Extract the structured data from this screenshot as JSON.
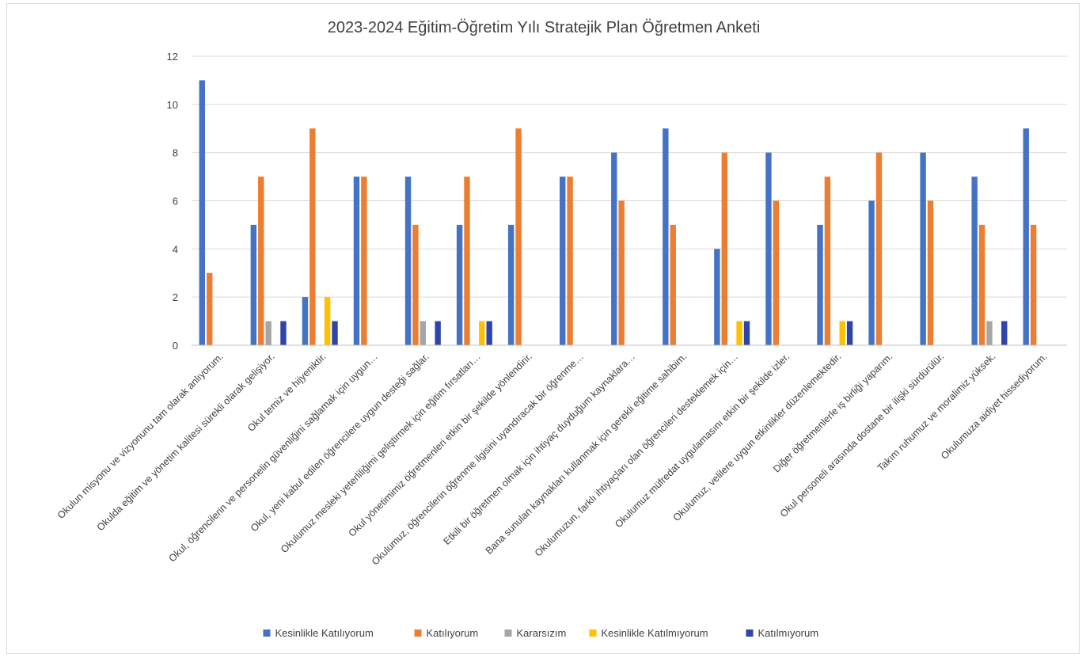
{
  "chart_data": {
    "type": "bar",
    "title": "2023-2024 Eğitim-Öğretim Yılı Stratejik Plan Öğretmen Anketi",
    "xlabel": "",
    "ylabel": "",
    "ylim": [
      0,
      12
    ],
    "yticks": [
      0,
      2,
      4,
      6,
      8,
      10,
      12
    ],
    "grid": true,
    "legend_position": "bottom",
    "categories": [
      "Okulun misyonu ve vizyonunu tam olarak anlıyorum.",
      "Okulda eğitim ve yönetim kalitesi sürekli olarak gelişiyor.",
      "Okul temiz ve hijyeniktir.",
      "Okul, öğrencilerin ve personelin güvenliğini sağlamak için uygun…",
      "Okul, yeni kabul edilen öğrencilere uygun desteği sağlar.",
      "Okulumuz mesleki yeterliliğimi geliştirmek için eğitim fırsatları…",
      "Okul yönetimimiz öğretmenleri etkin bir şekilde yönlendirir.",
      "Okulumuz, öğrencilerin öğrenme ilgisini uyandıracak bir öğrenme…",
      "Etkili bir öğretmen olmak için ihtiyaç duyduğum kaynaklara…",
      "Bana sunulan kaynakları kullanmak için gerekli eğitime sahibim.",
      "Okulumuzun, farklı ihtiyaçları olan öğrencileri desteklemek için…",
      "Okulumuz müfredat uygulamasını etkin bir şekilde izler.",
      "Okulumuz, velilere uygun etkinlikler düzenlemektedir.",
      "Diğer öğretmenlerle iş birliği yaparım.",
      "Okul personeli arasında dostane bir ilişki sürdürülür.",
      "Takım ruhumuz ve moralimiz yüksek.",
      "Okulumuza aidiyet hissediyorum."
    ],
    "series": [
      {
        "name": "Kesinlikle Katılıyorum",
        "color": "#4472c4",
        "values": [
          11,
          5,
          2,
          7,
          7,
          5,
          5,
          7,
          8,
          9,
          4,
          8,
          5,
          6,
          8,
          7,
          9
        ]
      },
      {
        "name": "Katılıyorum",
        "color": "#ed7d31",
        "values": [
          3,
          7,
          9,
          7,
          5,
          7,
          9,
          7,
          6,
          5,
          8,
          6,
          7,
          8,
          6,
          5,
          5
        ]
      },
      {
        "name": "Kararsızım",
        "color": "#a5a5a5",
        "values": [
          0,
          1,
          0,
          0,
          1,
          0,
          0,
          0,
          0,
          0,
          0,
          0,
          0,
          0,
          0,
          1,
          0
        ]
      },
      {
        "name": "Kesinlikle Katılmıyorum",
        "color": "#ffc000",
        "values": [
          0,
          0,
          2,
          0,
          0,
          1,
          0,
          0,
          0,
          0,
          1,
          0,
          1,
          0,
          0,
          0,
          0
        ]
      },
      {
        "name": "Katılmıyorum",
        "color": "#2f46a8",
        "values": [
          0,
          1,
          1,
          0,
          1,
          1,
          0,
          0,
          0,
          0,
          1,
          0,
          1,
          0,
          0,
          1,
          0
        ]
      }
    ]
  }
}
